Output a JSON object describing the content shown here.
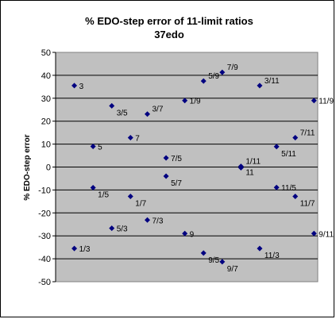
{
  "chart_data": {
    "type": "scatter",
    "title": "% EDO-step error of 11-limit ratios",
    "subtitle": "37edo",
    "xlabel": "",
    "ylabel": "% EDO-step error",
    "ylim": [
      -50,
      50
    ],
    "xlim": [
      0,
      14
    ],
    "yticks": [
      "50",
      "40",
      "30",
      "20",
      "10",
      "0",
      "-10",
      "-20",
      "-30",
      "-40",
      "-50"
    ],
    "grid": true,
    "plot_bg": "#c0c0c0",
    "marker_color": "#000080",
    "points": [
      {
        "x": 1,
        "y": 35.5,
        "label": "3"
      },
      {
        "x": 1,
        "y": -35.5,
        "label": "1/3"
      },
      {
        "x": 2,
        "y": 9,
        "label": "5"
      },
      {
        "x": 2,
        "y": -9,
        "label": "1/5"
      },
      {
        "x": 3,
        "y": 26.7,
        "label": "3/5"
      },
      {
        "x": 3,
        "y": -26.7,
        "label": "5/3"
      },
      {
        "x": 4,
        "y": 12.8,
        "label": "7"
      },
      {
        "x": 4,
        "y": -12.8,
        "label": "1/7"
      },
      {
        "x": 4.9,
        "y": 23.1,
        "label": "3/7"
      },
      {
        "x": 4.9,
        "y": -23.1,
        "label": "7/3"
      },
      {
        "x": 5.9,
        "y": 4,
        "label": "7/5"
      },
      {
        "x": 5.9,
        "y": -4,
        "label": "5/7"
      },
      {
        "x": 6.9,
        "y": 29,
        "label": "1/9"
      },
      {
        "x": 6.9,
        "y": -29,
        "label": "9"
      },
      {
        "x": 7.9,
        "y": 37.5,
        "label": "5/9"
      },
      {
        "x": 7.9,
        "y": -37.5,
        "label": "9/5"
      },
      {
        "x": 8.9,
        "y": 41.3,
        "label": "7/9"
      },
      {
        "x": 8.9,
        "y": -41.3,
        "label": "9/7"
      },
      {
        "x": 9.9,
        "y": 0.3,
        "label": "1/11"
      },
      {
        "x": 9.9,
        "y": -0.3,
        "label": "11"
      },
      {
        "x": 10.9,
        "y": 35.5,
        "label": "3/11"
      },
      {
        "x": 10.9,
        "y": -35.5,
        "label": "11/3"
      },
      {
        "x": 11.8,
        "y": 8.9,
        "label": "5/11"
      },
      {
        "x": 11.8,
        "y": -8.9,
        "label": "11/5"
      },
      {
        "x": 12.8,
        "y": 12.8,
        "label": "7/11"
      },
      {
        "x": 12.8,
        "y": -12.8,
        "label": "11/7"
      },
      {
        "x": 13.8,
        "y": 29,
        "label": "11/9"
      },
      {
        "x": 13.8,
        "y": -29,
        "label": "9/11"
      }
    ]
  }
}
